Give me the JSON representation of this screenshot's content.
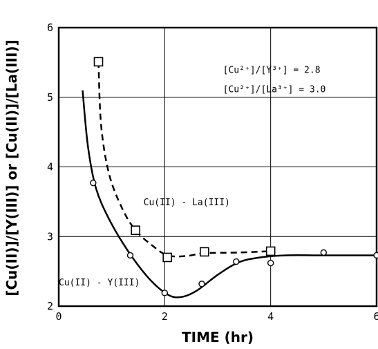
{
  "chart_data": {
    "type": "line",
    "title": "",
    "xlabel": "TIME (hr)",
    "ylabel": "[Cu(II)]/[Y(III)] or [Cu(II)]/[La(III)]",
    "xlim": [
      0,
      6
    ],
    "ylim": [
      2,
      6
    ],
    "x_ticks": [
      0,
      2,
      4,
      6
    ],
    "y_ticks": [
      2,
      3,
      4,
      5,
      6
    ],
    "x_tick_labels": [
      "0",
      "2",
      "4",
      "6"
    ],
    "y_tick_labels": [
      "2",
      "3",
      "4",
      "5",
      "6"
    ],
    "grid": true,
    "series": [
      {
        "name": "Cu(II) - Y(III)",
        "marker": "circle",
        "line_style": "solid",
        "points": [
          {
            "x": 0.65,
            "y": 3.77
          },
          {
            "x": 1.35,
            "y": 2.73
          },
          {
            "x": 2.0,
            "y": 2.19
          },
          {
            "x": 2.7,
            "y": 2.32
          },
          {
            "x": 3.35,
            "y": 2.64
          },
          {
            "x": 4.0,
            "y": 2.62
          },
          {
            "x": 5.0,
            "y": 2.77
          },
          {
            "x": 6.0,
            "y": 2.73
          }
        ],
        "curve": [
          {
            "x": 0.45,
            "y": 5.1
          },
          {
            "x": 0.55,
            "y": 4.3
          },
          {
            "x": 0.7,
            "y": 3.7
          },
          {
            "x": 0.95,
            "y": 3.25
          },
          {
            "x": 1.3,
            "y": 2.8
          },
          {
            "x": 1.7,
            "y": 2.4
          },
          {
            "x": 2.05,
            "y": 2.17
          },
          {
            "x": 2.3,
            "y": 2.13
          },
          {
            "x": 2.6,
            "y": 2.22
          },
          {
            "x": 3.0,
            "y": 2.45
          },
          {
            "x": 3.4,
            "y": 2.63
          },
          {
            "x": 3.8,
            "y": 2.7
          },
          {
            "x": 4.3,
            "y": 2.73
          },
          {
            "x": 5.0,
            "y": 2.73
          },
          {
            "x": 6.0,
            "y": 2.73
          }
        ]
      },
      {
        "name": "Cu(II) - La(III)",
        "marker": "square",
        "line_style": "dashed",
        "points": [
          {
            "x": 0.75,
            "y": 5.51
          },
          {
            "x": 1.45,
            "y": 3.09
          },
          {
            "x": 2.05,
            "y": 2.7
          },
          {
            "x": 2.75,
            "y": 2.78
          },
          {
            "x": 4.0,
            "y": 2.79
          }
        ],
        "curve": [
          {
            "x": 0.75,
            "y": 5.51
          },
          {
            "x": 0.8,
            "y": 4.6
          },
          {
            "x": 0.95,
            "y": 3.9
          },
          {
            "x": 1.2,
            "y": 3.4
          },
          {
            "x": 1.45,
            "y": 3.09
          },
          {
            "x": 1.75,
            "y": 2.88
          },
          {
            "x": 2.05,
            "y": 2.73
          },
          {
            "x": 2.4,
            "y": 2.72
          },
          {
            "x": 2.75,
            "y": 2.76
          },
          {
            "x": 3.4,
            "y": 2.77
          },
          {
            "x": 4.0,
            "y": 2.79
          }
        ]
      }
    ],
    "annotations": [
      {
        "text": "[Cu²⁺]/[Y³⁺] = 2.8",
        "x": 3.1,
        "y": 5.35
      },
      {
        "text": "[Cu²⁺]/[La³⁺] = 3.0",
        "x": 3.1,
        "y": 5.07
      },
      {
        "text": "Cu(II) - La(III)",
        "x": 1.6,
        "y": 3.45
      },
      {
        "text": "Cu(II) - Y(III)",
        "x": 0.0,
        "y": 2.3
      }
    ]
  }
}
